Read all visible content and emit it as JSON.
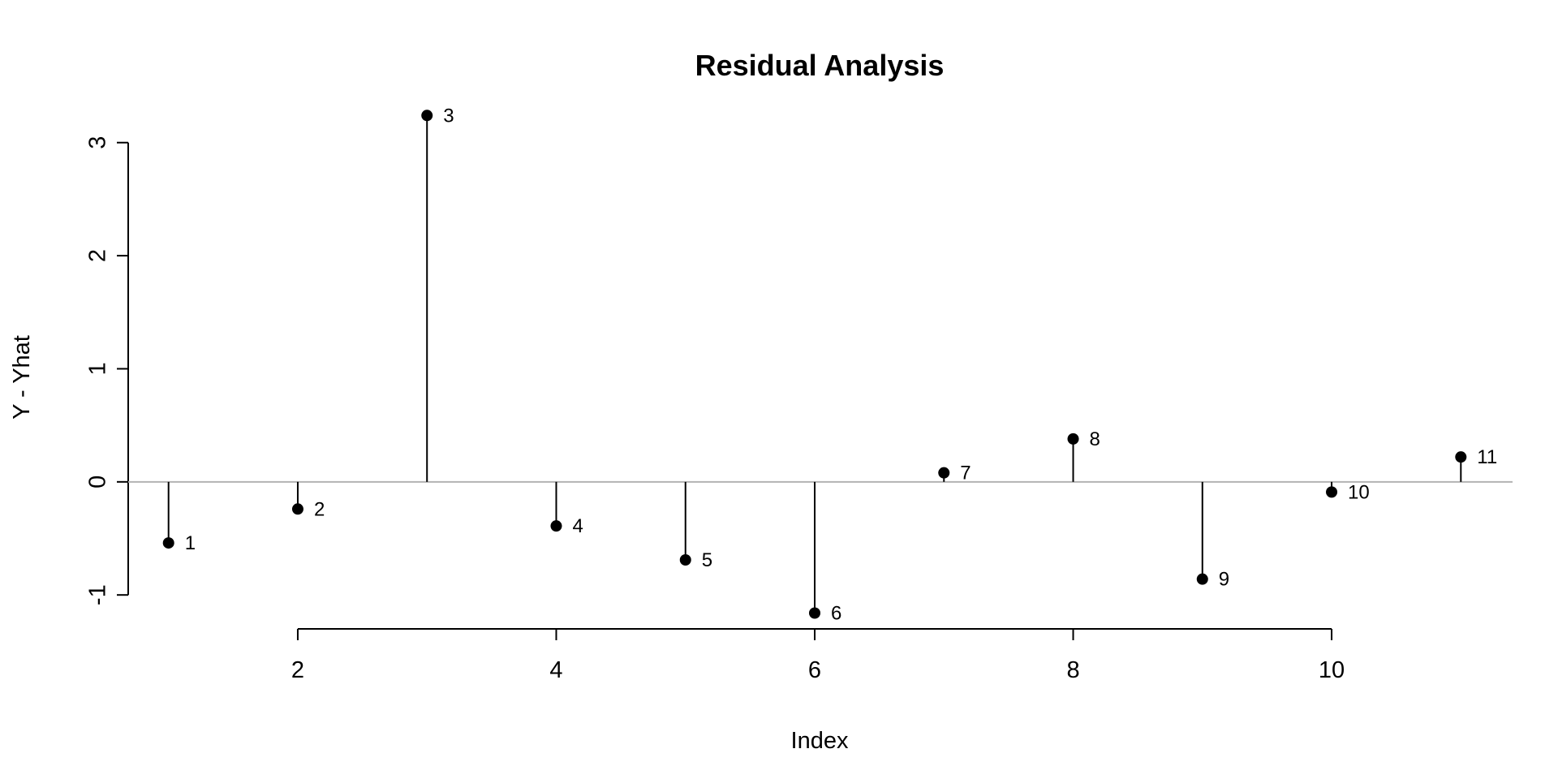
{
  "chart_data": {
    "type": "scatter",
    "title": "Residual Analysis",
    "xlabel": "Index",
    "ylabel": "Y - Yhat",
    "xlim": [
      0.6,
      11.4
    ],
    "ylim": [
      -1.3,
      3.4
    ],
    "x_ticks": [
      2,
      4,
      6,
      8,
      10
    ],
    "y_ticks": [
      -1,
      0,
      1,
      2,
      3
    ],
    "x_tick_labels": [
      "2",
      "4",
      "6",
      "8",
      "10"
    ],
    "y_tick_labels": [
      "-1",
      "0",
      "1",
      "2",
      "3"
    ],
    "reference_line_y": 0,
    "reference_line_color": "#b3b3b3",
    "mark_color": "#000000",
    "grid": false,
    "x": [
      1,
      2,
      3,
      4,
      5,
      6,
      7,
      8,
      9,
      10,
      11
    ],
    "y": [
      -0.54,
      -0.24,
      3.24,
      -0.39,
      -0.69,
      -1.16,
      0.08,
      0.38,
      -0.86,
      -0.09,
      0.22
    ],
    "point_labels": [
      "1",
      "2",
      "3",
      "4",
      "5",
      "6",
      "7",
      "8",
      "9",
      "10",
      "11"
    ]
  }
}
